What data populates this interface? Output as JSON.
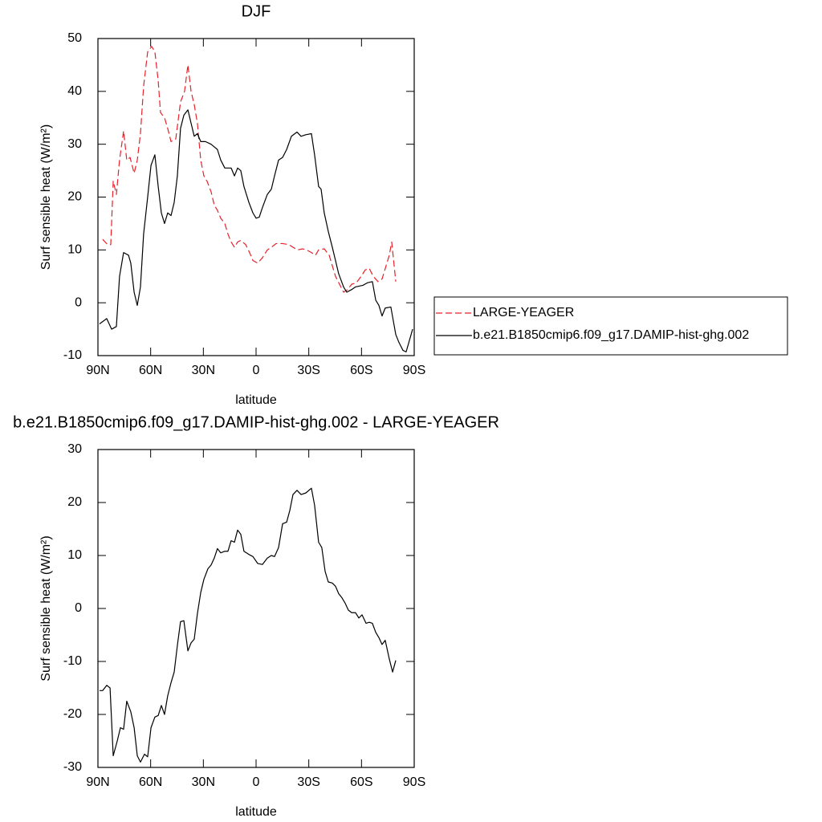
{
  "chart_data": [
    {
      "type": "line",
      "title": "DJF",
      "x_label": "latitude",
      "y_label": "Surf sensible heat (W/m²)",
      "xlim": [
        90,
        -90
      ],
      "xticks": [
        {
          "value": 90,
          "label": "90N"
        },
        {
          "value": 60,
          "label": "60N"
        },
        {
          "value": 30,
          "label": "30N"
        },
        0,
        {
          "value": -30,
          "label": "30S"
        },
        {
          "value": -60,
          "label": "60S"
        },
        {
          "value": -90,
          "label": "90S"
        }
      ],
      "ylim": [
        -10,
        50
      ],
      "yticks": [
        -10,
        0,
        10,
        20,
        30,
        40,
        50
      ],
      "legend": "right",
      "series": [
        {
          "name": "LARGE-YEAGER",
          "color": "#e8202a",
          "line_style": "dashed",
          "x": [
            87.3,
            84.5,
            82.7,
            81.3,
            79.5,
            77.7,
            75.4,
            73.6,
            71.7,
            69.4,
            67.6,
            65.8,
            64,
            61.7,
            59.4,
            57.6,
            55.7,
            54.4,
            52.1,
            50.3,
            48.4,
            45.7,
            43,
            40.7,
            38.8,
            37,
            35.2,
            33.4,
            31.5,
            29.7,
            27.9,
            25.6,
            23.8,
            22,
            20.1,
            17.8,
            16,
            14.2,
            12.3,
            10.5,
            8.7,
            5.9,
            3.7,
            1.8,
            -0.9,
            -3.6,
            -6.4,
            -8.7,
            -11.4,
            -15.1,
            -18.7,
            -21,
            -23.7,
            -26.5,
            -28.8,
            -31.5,
            -33.8,
            -35.6,
            -38.8,
            -41.6,
            -43.4,
            -45.2,
            -47.5,
            -49.8,
            -52.1,
            -54.4,
            -57.1,
            -59.8,
            -62.1,
            -64.4,
            -66.7,
            -69.4,
            -71.7,
            -74,
            -75.8,
            -77.2,
            -79.5
          ],
          "values": [
            12,
            11,
            11,
            23,
            20.5,
            27,
            32.5,
            27,
            27.5,
            24.5,
            27,
            32,
            41,
            47.5,
            48.5,
            47.5,
            42,
            36,
            35,
            33,
            30.5,
            31,
            38,
            40,
            45,
            40,
            37.5,
            34,
            27,
            24,
            23,
            21,
            18.5,
            17.5,
            16,
            15,
            13,
            11.5,
            10.5,
            11.5,
            11.8,
            11,
            9.5,
            8,
            7.5,
            8.5,
            10,
            10.5,
            11.2,
            11.2,
            11,
            10.5,
            10,
            10.2,
            10,
            9.5,
            9,
            10,
            10.2,
            9,
            7,
            5,
            3.5,
            2,
            2.5,
            3.5,
            3.8,
            5,
            6.2,
            6.5,
            5,
            4,
            4.5,
            7,
            9,
            11.5,
            4
          ]
        },
        {
          "name": "b.e21.B1850cmip6.f09_g17.DAMIP-hist-ghg.002",
          "color": "#000000",
          "line_style": "solid",
          "x": [
            89.1,
            85,
            82.2,
            79.5,
            77.7,
            75.4,
            72.6,
            71.3,
            69.4,
            67.6,
            65.8,
            64,
            61.7,
            59.8,
            57.6,
            55.7,
            53.9,
            52.1,
            50.3,
            48.4,
            46.6,
            44.8,
            43,
            41.1,
            38.8,
            37,
            35.2,
            33.4,
            31.5,
            28.8,
            25.6,
            23.8,
            22,
            20.1,
            17.8,
            14.2,
            12.3,
            10.5,
            8.7,
            6.9,
            4.1,
            1.8,
            0,
            -1.8,
            -3.6,
            -6.4,
            -8.7,
            -10.5,
            -12.8,
            -15.1,
            -17.4,
            -20.1,
            -23.3,
            -25.6,
            -28.3,
            -31.5,
            -33.3,
            -35.6,
            -37,
            -38.8,
            -41.1,
            -43.4,
            -45.2,
            -47,
            -49.8,
            -51.6,
            -54.4,
            -56.6,
            -60.8,
            -63.5,
            -66.2,
            -68.1,
            -69.9,
            -71.7,
            -73.5,
            -76.7,
            -79.5,
            -81.3,
            -83.6,
            -85.4,
            -89.1
          ],
          "values": [
            -4,
            -3,
            -5,
            -4.5,
            5,
            9.5,
            9,
            7.5,
            2,
            -0.5,
            3,
            13,
            20,
            26,
            28,
            22,
            17,
            15,
            17,
            16.5,
            19,
            24,
            33,
            35.5,
            36.5,
            34,
            31.5,
            32,
            30.5,
            30.5,
            30,
            29.5,
            29,
            27,
            25.5,
            25.5,
            24,
            25.5,
            25,
            22,
            19,
            17,
            16,
            16.2,
            18,
            20.5,
            21.5,
            24,
            27,
            27.5,
            29,
            31.5,
            32.3,
            31.5,
            31.8,
            32,
            28,
            22,
            21.5,
            17,
            13.5,
            10.5,
            8,
            5.5,
            3,
            2,
            2.5,
            3,
            3.3,
            3.8,
            4,
            0.5,
            -0.5,
            -2.5,
            -1,
            -0.8,
            -6,
            -7.5,
            -9,
            -9.3,
            -5
          ]
        }
      ]
    },
    {
      "type": "line",
      "title": "b.e21.B1850cmip6.f09_g17.DAMIP-hist-ghg.002 - LARGE-YEAGER",
      "x_label": "latitude",
      "y_label": "Surf sensible heat (W/m²)",
      "xlim": [
        90,
        -90
      ],
      "xticks": [
        {
          "value": 90,
          "label": "90N"
        },
        {
          "value": 60,
          "label": "60N"
        },
        {
          "value": 30,
          "label": "30N"
        },
        0,
        {
          "value": -30,
          "label": "30S"
        },
        {
          "value": -60,
          "label": "60S"
        },
        {
          "value": -90,
          "label": "90S"
        }
      ],
      "ylim": [
        -30,
        30
      ],
      "yticks": [
        -30,
        -20,
        -10,
        0,
        10,
        20,
        30
      ],
      "series": [
        {
          "color": "#000000",
          "line_style": "solid",
          "x": [
            89.1,
            87.3,
            85,
            83.1,
            81.3,
            79,
            77.2,
            75.4,
            73.6,
            71.3,
            69.4,
            67.6,
            65.8,
            63.5,
            61.7,
            59.8,
            57.6,
            55.7,
            53.9,
            52.1,
            50.3,
            48.4,
            46.6,
            44.8,
            43,
            41.1,
            38.8,
            37,
            35.2,
            33.4,
            31.5,
            29.7,
            27.4,
            25.6,
            23.8,
            22,
            20.1,
            17.8,
            16,
            14.2,
            12.3,
            10.5,
            8.7,
            6.9,
            4.1,
            1.8,
            -0.9,
            -3.6,
            -6.4,
            -8.7,
            -10.5,
            -12.8,
            -15.1,
            -17.4,
            -19.2,
            -21,
            -23.3,
            -25.6,
            -28.3,
            -31.5,
            -33.3,
            -35.6,
            -37.4,
            -39.3,
            -41.1,
            -43.4,
            -45.2,
            -47,
            -48.9,
            -50.7,
            -52.5,
            -54.4,
            -56.6,
            -58.5,
            -60.3,
            -62.6,
            -64.4,
            -66.2,
            -68.1,
            -69.9,
            -71.7,
            -73.5,
            -75.8,
            -77.7,
            -79.5
          ],
          "values": [
            -15.5,
            -15.5,
            -14.5,
            -15,
            -27.8,
            -25,
            -22.5,
            -22.8,
            -17.5,
            -19.5,
            -22.5,
            -27.8,
            -29,
            -27.5,
            -28,
            -22.5,
            -20.5,
            -20.2,
            -18.3,
            -20,
            -16.5,
            -14,
            -12,
            -7,
            -2.5,
            -2.3,
            -8,
            -6.5,
            -5.8,
            -1,
            3,
            5.5,
            7.5,
            8.2,
            9.5,
            11.3,
            10.5,
            10.8,
            10.8,
            12.8,
            12.5,
            14.8,
            14,
            10.8,
            10.2,
            9.8,
            8.5,
            8.3,
            9.5,
            10,
            9.8,
            11.5,
            16,
            16.3,
            18.5,
            21.5,
            22.3,
            21.5,
            21.8,
            22.7,
            19.5,
            12.5,
            11.5,
            7,
            5,
            4.8,
            4.2,
            2.8,
            2,
            1,
            -0.3,
            -0.8,
            -0.8,
            -1.8,
            -1.2,
            -2.8,
            -2.6,
            -2.8,
            -4.5,
            -5.5,
            -6.8,
            -6,
            -9.5,
            -12,
            -9.8
          ]
        }
      ]
    }
  ]
}
